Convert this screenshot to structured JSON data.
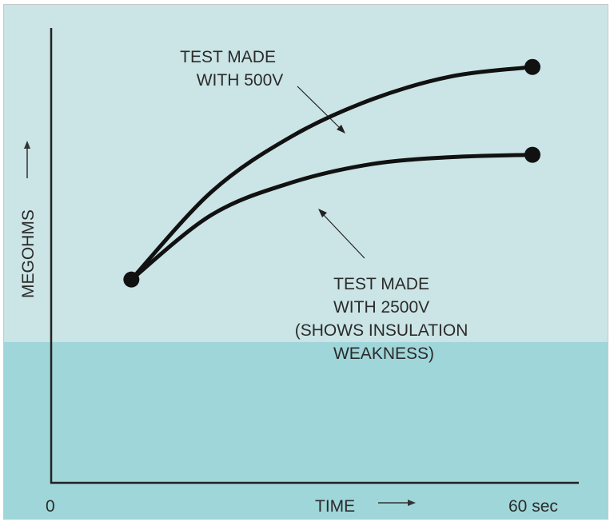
{
  "chart_data": {
    "type": "line",
    "xlabel": "TIME",
    "ylabel": "MEGOHMS",
    "x_ticks": [
      "0",
      "60 sec"
    ],
    "x_range": [
      0,
      60
    ],
    "y_range": [
      0,
      100
    ],
    "grid": false,
    "legend": "none",
    "series": [
      {
        "label_lines": [
          "TEST MADE",
          "WITH 500V"
        ],
        "color": "#111111",
        "x": [
          10,
          20,
          30,
          40,
          50,
          60
        ],
        "y": [
          44,
          63,
          75,
          83,
          88,
          90
        ]
      },
      {
        "label_lines": [
          "TEST MADE",
          "WITH 2500V",
          "(SHOWS INSULATION",
          "WEAKNESS)"
        ],
        "color": "#111111",
        "x": [
          10,
          20,
          30,
          40,
          50,
          60
        ],
        "y": [
          44,
          58,
          65,
          69,
          70.5,
          71
        ]
      }
    ]
  },
  "colors": {
    "upper_band": "#cbe4e6",
    "lower_band": "#9fd6d9",
    "axis": "#222222"
  }
}
